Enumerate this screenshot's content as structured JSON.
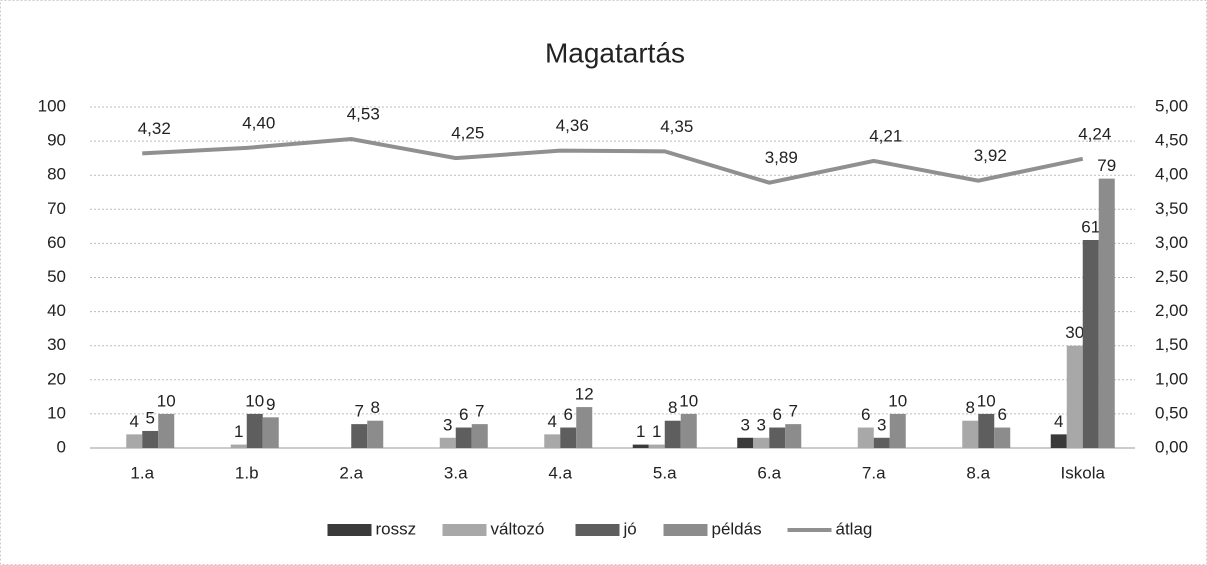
{
  "chart_data": {
    "type": "bar+line",
    "title": "Magatartás",
    "categories": [
      "1.a",
      "1.b",
      "2.a",
      "3.a",
      "4.a",
      "5.a",
      "6.a",
      "7.a",
      "8.a",
      "Iskola"
    ],
    "series": [
      {
        "name": "rossz",
        "color": "#3a3a3a",
        "values": [
          null,
          null,
          null,
          null,
          null,
          1,
          3,
          null,
          null,
          4
        ]
      },
      {
        "name": "változó",
        "color": "#a8a8a8",
        "values": [
          4,
          1,
          null,
          3,
          4,
          1,
          3,
          6,
          8,
          30
        ]
      },
      {
        "name": "jó",
        "color": "#5e5e5e",
        "values": [
          5,
          10,
          7,
          6,
          6,
          8,
          6,
          3,
          10,
          61
        ]
      },
      {
        "name": "példás",
        "color": "#8c8c8c",
        "values": [
          10,
          9,
          8,
          7,
          12,
          10,
          7,
          10,
          6,
          79
        ]
      },
      {
        "name": "átlag",
        "color": "#909090",
        "type": "line",
        "axis": "y2",
        "values": [
          4.32,
          4.4,
          4.53,
          4.25,
          4.36,
          4.35,
          3.89,
          4.21,
          3.92,
          4.24
        ],
        "value_labels": [
          "4,32",
          "4,40",
          "4,53",
          "4,25",
          "4,36",
          "4,35",
          "3,89",
          "4,21",
          "3,92",
          "4,24"
        ]
      }
    ],
    "ylim": [
      0,
      100
    ],
    "yticks": [
      0,
      10,
      20,
      30,
      40,
      50,
      60,
      70,
      80,
      90,
      100
    ],
    "y2lim": [
      0,
      5
    ],
    "y2ticks": [
      {
        "value": 0,
        "label": "0,00"
      },
      {
        "value": 0.5,
        "label": "0,50"
      },
      {
        "value": 1,
        "label": "1,00"
      },
      {
        "value": 1.5,
        "label": "1,50"
      },
      {
        "value": 2,
        "label": "2,00"
      },
      {
        "value": 2.5,
        "label": "2,50"
      },
      {
        "value": 3,
        "label": "3,00"
      },
      {
        "value": 3.5,
        "label": "3,50"
      },
      {
        "value": 4,
        "label": "4,00"
      },
      {
        "value": 4.5,
        "label": "4,50"
      },
      {
        "value": 5,
        "label": "5,00"
      }
    ],
    "grid": true,
    "legend": "bottom"
  }
}
